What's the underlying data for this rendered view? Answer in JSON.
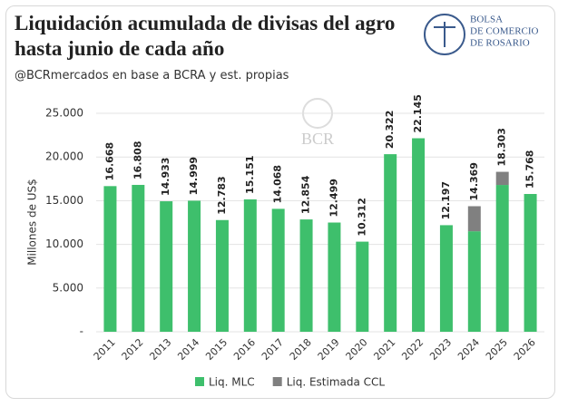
{
  "chart_data": {
    "type": "stacked_bar",
    "title": "Liquidación acumulada de divisas del agro hasta junio de cada año",
    "subtitle": "@BCRmercados en base a BCRA y est. propias",
    "y_label": "Millones de US$",
    "categories": [
      "2011",
      "2012",
      "2013",
      "2014",
      "2015",
      "2016",
      "2017",
      "2018",
      "2019",
      "2020",
      "2021",
      "2022",
      "2023",
      "2024",
      "2025",
      "2026"
    ],
    "series": [
      {
        "name": "Liq. MLC",
        "color": "#3ebf6c",
        "values": [
          16668,
          16808,
          14933,
          14999,
          12783,
          15151,
          14068,
          12854,
          12499,
          10312,
          20322,
          22145,
          12197,
          11500,
          16800,
          15768
        ]
      },
      {
        "name": "Liq. Estimada CCL",
        "color": "#808080",
        "values": [
          null,
          null,
          null,
          null,
          null,
          null,
          null,
          null,
          null,
          null,
          null,
          null,
          null,
          2869,
          1503,
          null
        ]
      }
    ],
    "totals": {
      "values": [
        16668,
        16808,
        14933,
        14999,
        12783,
        15151,
        14068,
        12854,
        12499,
        10312,
        20322,
        22145,
        12197,
        14369,
        18303,
        15768
      ],
      "value_labels": [
        "16.668",
        "16.808",
        "14.933",
        "14.999",
        "12.783",
        "15.151",
        "14.068",
        "12.854",
        "12.499",
        "10.312",
        "20.322",
        "22.145",
        "12.197",
        "14.369",
        "18.303",
        "15.768"
      ]
    },
    "ylim": [
      0,
      25000
    ],
    "yticks": [
      {
        "value": 0,
        "label": "-"
      },
      {
        "value": 5000,
        "label": "5.000"
      },
      {
        "value": 10000,
        "label": "10.000"
      },
      {
        "value": 15000,
        "label": "15.000"
      },
      {
        "value": 20000,
        "label": "20.000"
      },
      {
        "value": 25000,
        "label": "25.000"
      }
    ],
    "grid": true,
    "legend": "bottom"
  },
  "branding": {
    "logo_lines": [
      "BOLSA",
      "DE COMERCIO",
      "DE ROSARIO"
    ],
    "watermark": "BCR"
  }
}
